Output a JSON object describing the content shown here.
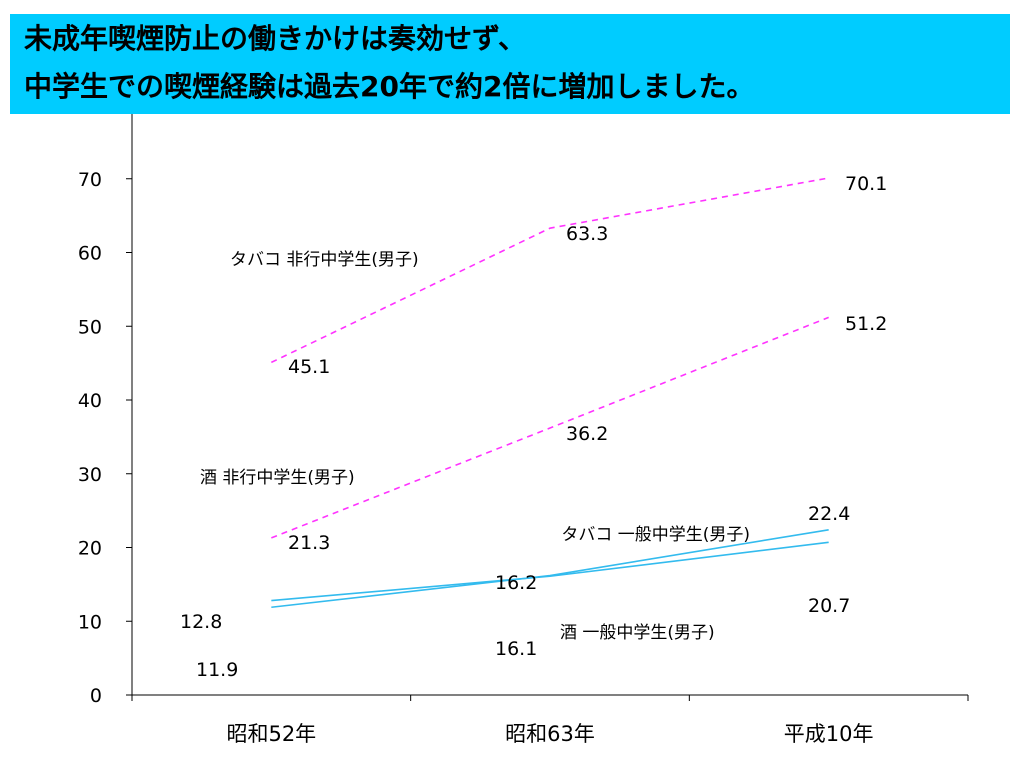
{
  "headline": {
    "line1": "未成年喫煙防止の働きかけは奏効せず、",
    "line2": "中学生での喫煙経験は過去20年で約2倍に増加しました。"
  },
  "chart_data": {
    "type": "line",
    "categories": [
      "昭和52年",
      "昭和63年",
      "平成10年"
    ],
    "ylim": [
      0,
      80
    ],
    "yticks": [
      0,
      10,
      20,
      30,
      40,
      50,
      60,
      70
    ],
    "series": [
      {
        "name": "タバコ 非行中学生(男子)",
        "values": [
          45.1,
          63.3,
          70.1
        ],
        "color": "#ff33ff",
        "dash": true
      },
      {
        "name": "酒 非行中学生(男子)",
        "values": [
          21.3,
          36.2,
          51.2
        ],
        "color": "#ff33ff",
        "dash": true
      },
      {
        "name": "タバコ 一般中学生(男子)",
        "values": [
          11.9,
          16.2,
          22.4
        ],
        "color": "#33bbee",
        "dash": false
      },
      {
        "name": "酒 一般中学生(男子)",
        "values": [
          12.8,
          16.1,
          20.7
        ],
        "color": "#33bbee",
        "dash": false
      }
    ],
    "labels": [
      {
        "text": "45.1"
      },
      {
        "text": "63.3"
      },
      {
        "text": "70.1"
      },
      {
        "text": "21.3"
      },
      {
        "text": "36.2"
      },
      {
        "text": "51.2"
      },
      {
        "text": "11.9"
      },
      {
        "text": "16.2"
      },
      {
        "text": "22.4"
      },
      {
        "text": "12.8"
      },
      {
        "text": "16.1"
      },
      {
        "text": "20.7"
      }
    ]
  }
}
